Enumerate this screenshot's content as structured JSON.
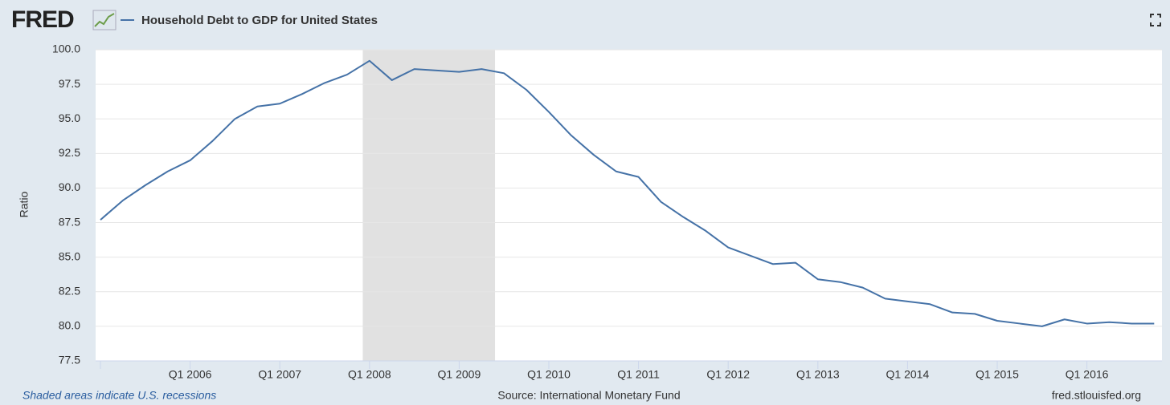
{
  "logo": "FRED",
  "chart_data": {
    "type": "line",
    "title": "Household Debt to GDP for United States",
    "y_label": "Ratio",
    "note": "Shaded areas indicate U.S. recessions",
    "source": "Source: International Monetary Fund",
    "site": "fred.stlouisfed.org",
    "categories": [
      null,
      null,
      null,
      null,
      "Q1 2006",
      null,
      null,
      null,
      "Q1 2007",
      null,
      null,
      null,
      "Q1 2008",
      null,
      null,
      null,
      "Q1 2009",
      null,
      null,
      null,
      "Q1 2010",
      null,
      null,
      null,
      "Q1 2011",
      null,
      null,
      null,
      "Q1 2012",
      null,
      null,
      null,
      "Q1 2013",
      null,
      null,
      null,
      "Q1 2014",
      null,
      null,
      null,
      "Q1 2015",
      null,
      null,
      null,
      "Q1 2016",
      null,
      null,
      null
    ],
    "series": [
      {
        "name": "Household Debt to GDP for United States",
        "color": "#4572a7",
        "values": [
          87.7,
          89.1,
          90.2,
          91.2,
          92.0,
          93.4,
          95.0,
          95.9,
          96.1,
          96.8,
          97.6,
          98.2,
          99.2,
          97.8,
          98.6,
          98.5,
          98.4,
          98.6,
          98.3,
          97.1,
          95.5,
          93.8,
          92.4,
          91.2,
          90.8,
          89.0,
          87.9,
          86.9,
          85.7,
          85.1,
          84.5,
          84.6,
          83.4,
          83.2,
          82.8,
          82.0,
          81.8,
          81.6,
          81.0,
          80.9,
          80.4,
          80.2,
          80.0,
          80.5,
          80.2,
          80.3,
          80.2,
          80.2
        ]
      }
    ],
    "recessions": [
      {
        "start": 11.7,
        "end": 17.6
      }
    ],
    "recession_color": "#e1e1e1",
    "ylim": [
      77.5,
      100
    ],
    "yticks": [
      {
        "value": 77.5,
        "label": "77.5"
      },
      {
        "value": 80,
        "label": "80.0"
      },
      {
        "value": 82.5,
        "label": "82.5"
      },
      {
        "value": 85,
        "label": "85.0"
      },
      {
        "value": 87.5,
        "label": "87.5"
      },
      {
        "value": 90,
        "label": "90.0"
      },
      {
        "value": 92.5,
        "label": "92.5"
      },
      {
        "value": 95,
        "label": "95.0"
      },
      {
        "value": 97.5,
        "label": "97.5"
      },
      {
        "value": 100,
        "label": "100.0"
      }
    ],
    "grid": true
  }
}
